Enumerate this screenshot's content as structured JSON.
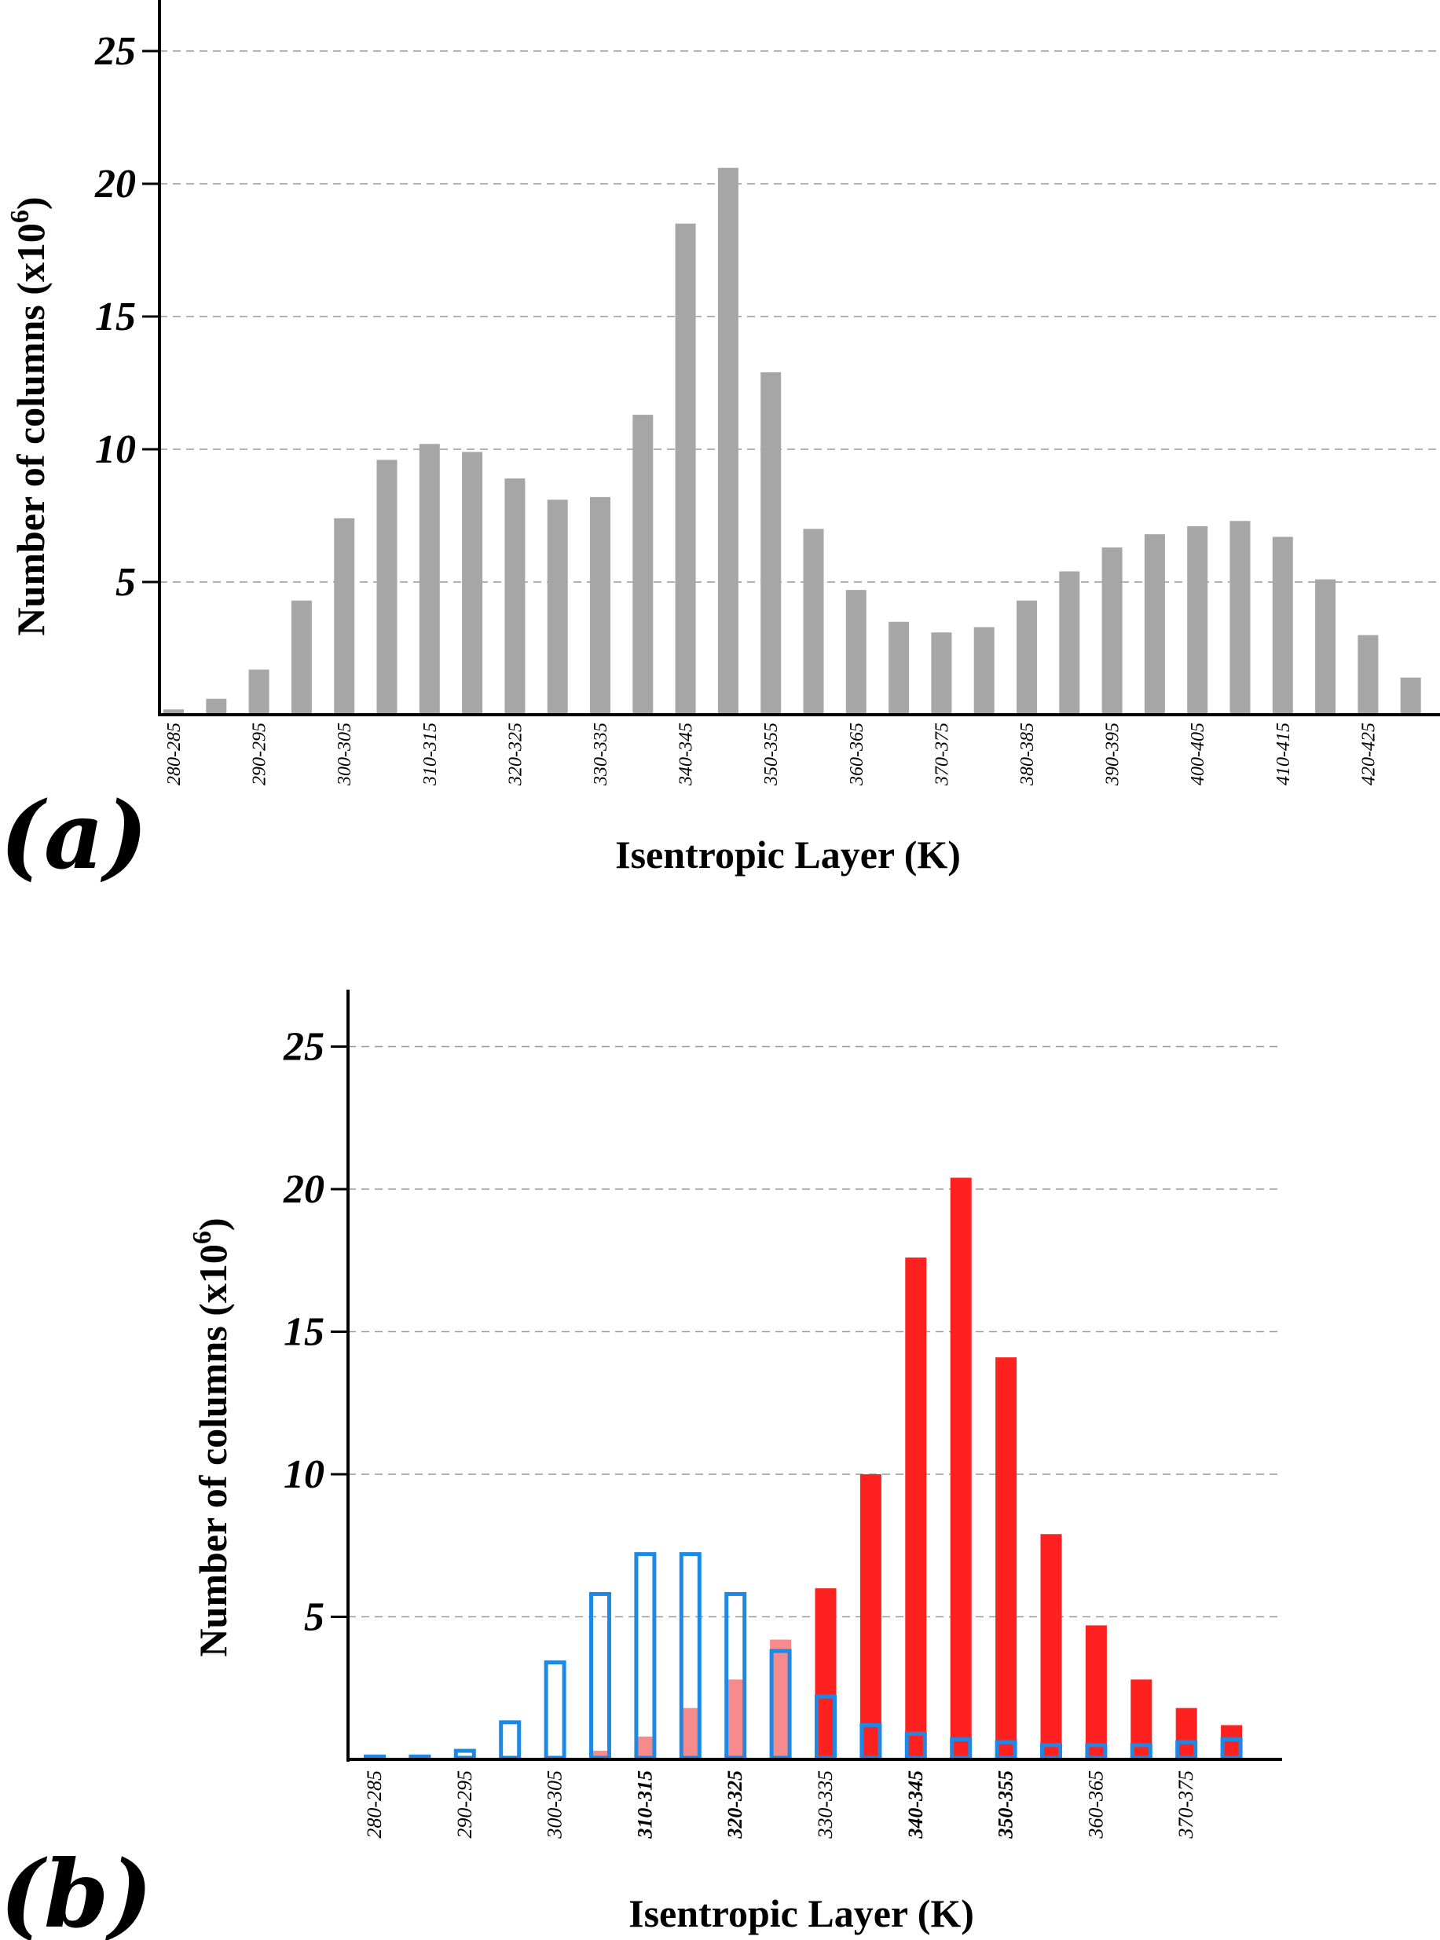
{
  "colors": {
    "gray_bar": "#a6a6a6",
    "red_bar": "#ff2020",
    "pink_bar": "#f78a8a",
    "blue_outline": "#1e88e5",
    "blue_label": "#1a1aff",
    "red_label": "#ff1a1a"
  },
  "chart_data": [
    {
      "panel_label": "(a)",
      "type": "bar",
      "xlabel": "Isentropic Layer (K)",
      "ylabel_main": "Number of columns (x10",
      "ylabel_sup": "6",
      "ylabel_close": ")",
      "ylim": [
        0,
        27
      ],
      "yticks": [
        5,
        10,
        15,
        20,
        25
      ],
      "ytick_labels": [
        "5",
        "10",
        "15",
        "20",
        "25"
      ],
      "grid": "horizontal dashed",
      "categories": [
        "280-285",
        "285-290",
        "290-295",
        "295-300",
        "300-305",
        "305-310",
        "310-315",
        "315-320",
        "320-325",
        "325-330",
        "330-335",
        "335-340",
        "340-345",
        "345-350",
        "350-355",
        "355-360",
        "360-365",
        "365-370",
        "370-375",
        "375-380",
        "380-385",
        "385-390",
        "390-395",
        "395-400",
        "400-405",
        "405-410",
        "410-415",
        "415-420",
        "420-425",
        "425-430"
      ],
      "tick_labels": [
        "280-285",
        "290-295",
        "300-305",
        "310-315",
        "320-325",
        "330-335",
        "340-345",
        "350-355",
        "360-365",
        "370-375",
        "380-385",
        "390-395",
        "400-405",
        "410-415",
        "420-425"
      ],
      "series": [
        {
          "color": "#a6a6a6",
          "values": [
            0.2,
            0.6,
            1.7,
            4.3,
            7.4,
            9.6,
            10.2,
            9.9,
            8.9,
            8.1,
            8.2,
            11.3,
            18.5,
            20.6,
            12.9,
            7.0,
            4.7,
            3.5,
            3.1,
            3.3,
            4.3,
            5.4,
            6.3,
            6.8,
            7.1,
            7.3,
            6.7,
            5.1,
            3.0,
            1.4
          ]
        }
      ]
    },
    {
      "panel_label": "(b)",
      "type": "bar",
      "xlabel": "Isentropic Layer (K)",
      "ylabel_main": "Number of columns (x10",
      "ylabel_sup": "6",
      "ylabel_close": ")",
      "ylim": [
        0,
        27
      ],
      "yticks": [
        5,
        10,
        15,
        20,
        25
      ],
      "ytick_labels": [
        "5",
        "10",
        "15",
        "20",
        "25"
      ],
      "grid": "horizontal dashed",
      "categories": [
        "280-285",
        "285-290",
        "290-295",
        "295-300",
        "300-305",
        "305-310",
        "310-315",
        "315-320",
        "320-325",
        "325-330",
        "330-335",
        "335-340",
        "340-345",
        "345-350",
        "350-355",
        "355-360",
        "360-365",
        "365-370",
        "370-375",
        "375-380"
      ],
      "tick_labels": [
        {
          "text": "280-285",
          "color": "#000000"
        },
        {
          "text": "290-295",
          "color": "#000000"
        },
        {
          "text": "300-305",
          "color": "#000000"
        },
        {
          "text": "310-315",
          "color": "#1a1aff"
        },
        {
          "text": "320-325",
          "color": "#1a1aff"
        },
        {
          "text": "330-335",
          "color": "#000000"
        },
        {
          "text": "340-345",
          "color": "#ff1a1a"
        },
        {
          "text": "350-355",
          "color": "#ff1a1a"
        },
        {
          "text": "360-365",
          "color": "#000000"
        },
        {
          "text": "370-375",
          "color": "#000000"
        }
      ],
      "series": [
        {
          "style": "filled",
          "values": [
            0.0,
            0.0,
            0.0,
            0.0,
            0.0,
            0.3,
            0.8,
            1.8,
            2.8,
            4.2,
            6.0,
            10.0,
            17.6,
            20.4,
            14.1,
            7.9,
            4.7,
            2.8,
            1.8,
            1.2
          ]
        },
        {
          "style": "outline",
          "color": "#1e88e5",
          "values": [
            0.1,
            0.1,
            0.3,
            1.3,
            3.4,
            5.8,
            7.2,
            7.2,
            5.8,
            3.8,
            2.2,
            1.2,
            0.9,
            0.7,
            0.6,
            0.5,
            0.5,
            0.5,
            0.6,
            0.7
          ]
        }
      ]
    }
  ]
}
